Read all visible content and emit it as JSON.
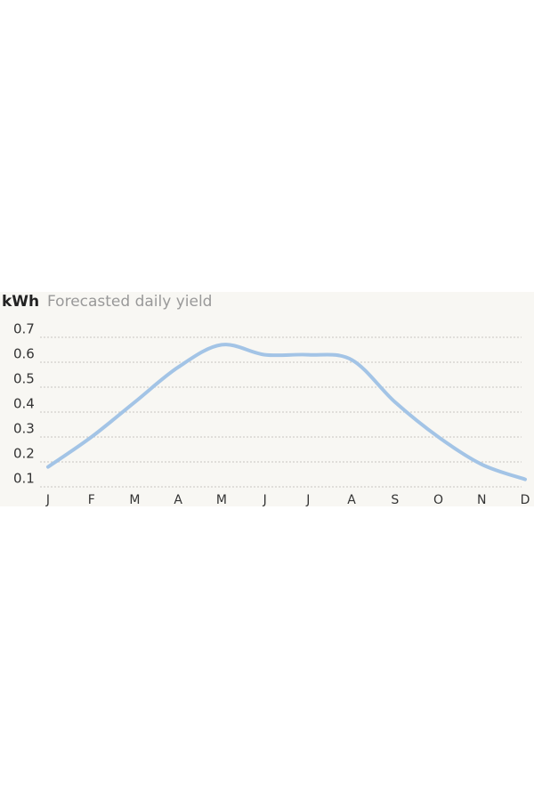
{
  "chart_data": {
    "type": "line",
    "unit": "kWh",
    "title": "Forecasted daily yield",
    "categories": [
      "J",
      "F",
      "M",
      "A",
      "M",
      "J",
      "J",
      "A",
      "S",
      "O",
      "N",
      "D"
    ],
    "series": [
      {
        "name": "Forecasted daily yield",
        "color": "#a3c4e6",
        "values": [
          0.18,
          0.3,
          0.44,
          0.58,
          0.67,
          0.63,
          0.63,
          0.61,
          0.44,
          0.3,
          0.19,
          0.13
        ]
      }
    ],
    "ylim": [
      0.1,
      0.7
    ],
    "yticks": [
      0.1,
      0.2,
      0.3,
      0.4,
      0.5,
      0.6,
      0.7
    ],
    "grid": true
  }
}
